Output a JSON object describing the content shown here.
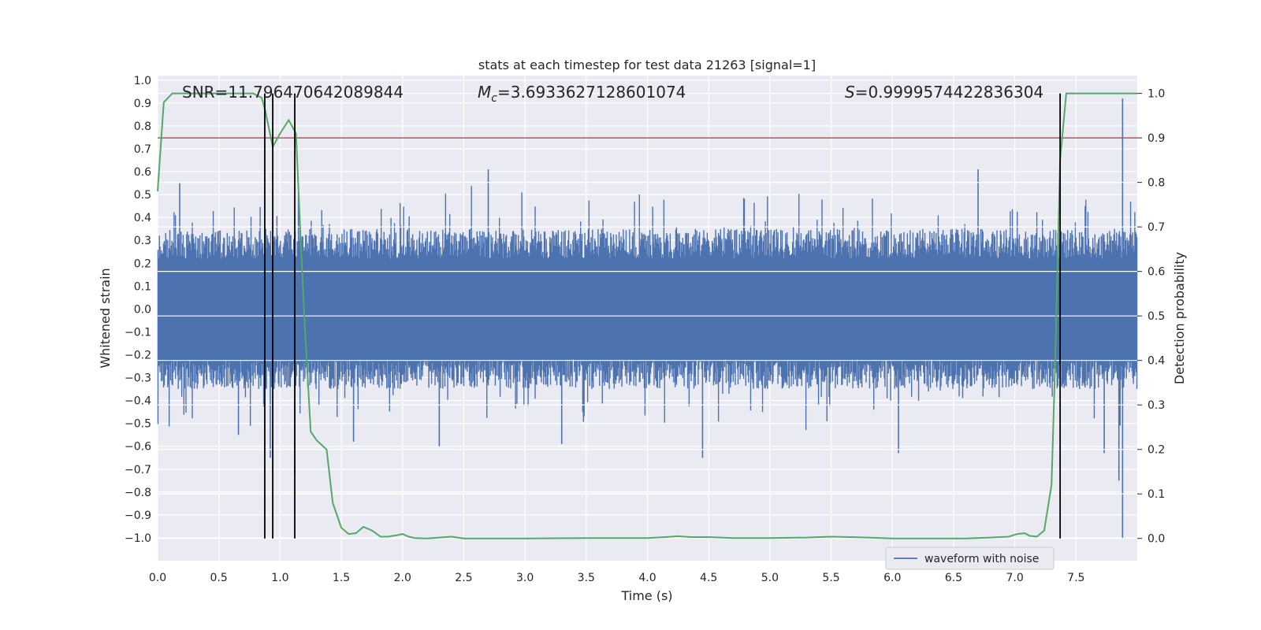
{
  "chart_data": {
    "type": "line",
    "title": "stats at each timestep for test data 21263 [signal=1]",
    "xlabel": "Time (s)",
    "ylabel_left": "Whitened strain",
    "ylabel_right": "Detection probability",
    "xlim": [
      0,
      8
    ],
    "ylim_left": [
      -1.1,
      1.02
    ],
    "ylim_right": [
      -0.05,
      1.04
    ],
    "x_ticks": [
      0.0,
      0.5,
      1.0,
      1.5,
      2.0,
      2.5,
      3.0,
      3.5,
      4.0,
      4.5,
      5.0,
      5.5,
      6.0,
      6.5,
      7.0,
      7.5
    ],
    "x_tick_labels": [
      "0.0",
      "0.5",
      "1.0",
      "1.5",
      "2.0",
      "2.5",
      "3.0",
      "3.5",
      "4.0",
      "4.5",
      "5.0",
      "5.5",
      "6.0",
      "6.5",
      "7.0",
      "7.5"
    ],
    "y_left_ticks": [
      1.0,
      0.9,
      0.8,
      0.7,
      0.6,
      0.5,
      0.4,
      0.3,
      0.2,
      0.1,
      0.0,
      -0.1,
      -0.2,
      -0.3,
      -0.4,
      -0.5,
      -0.6,
      -0.7,
      -0.8,
      -0.9,
      -1.0
    ],
    "y_left_tick_labels": [
      "1.0",
      "0.9",
      "0.8",
      "0.7",
      "0.6",
      "0.5",
      "0.4",
      "0.3",
      "0.2",
      "0.1",
      "0.0",
      "−0.1",
      "−0.2",
      "−0.3",
      "−0.4",
      "−0.5",
      "−0.6",
      "−0.7",
      "−0.8",
      "−0.9",
      "−1.0"
    ],
    "y_right_ticks": [
      1.0,
      0.9,
      0.8,
      0.7,
      0.6,
      0.5,
      0.4,
      0.3,
      0.2,
      0.1,
      0.0
    ],
    "y_right_tick_labels": [
      "1.0",
      "0.9",
      "0.8",
      "0.7",
      "0.6",
      "0.5",
      "0.4",
      "0.3",
      "0.2",
      "0.1",
      "0.0"
    ],
    "grid": true,
    "legend": {
      "position": "lower-right",
      "entries": [
        {
          "label": "waveform with noise",
          "color": "#4c72b0"
        }
      ]
    },
    "annotations": {
      "snr": "SNR=11.796470642089844",
      "mc_symbol": "M",
      "mc_subscript": "c",
      "mc_value": "=3.6933627128601074",
      "s_symbol": "S",
      "s_value": "=0.9999574422836304"
    },
    "threshold": {
      "value": 0.9,
      "axis": "right",
      "color": "#c44e52"
    },
    "vertical_markers": [
      0.875,
      0.94,
      1.12,
      7.37
    ],
    "waveform": {
      "name": "waveform with noise",
      "color": "#4c72b0",
      "core_amplitude": 0.22,
      "typical_peak": 0.35,
      "spikes": [
        {
          "t": 0.18,
          "y": 0.55
        },
        {
          "t": 0.66,
          "y": -0.55
        },
        {
          "t": 0.92,
          "y": -0.65
        },
        {
          "t": 1.12,
          "y": -0.72
        },
        {
          "t": 1.15,
          "y": 0.52
        },
        {
          "t": 1.6,
          "y": -0.58
        },
        {
          "t": 2.3,
          "y": -0.6
        },
        {
          "t": 2.7,
          "y": 0.61
        },
        {
          "t": 3.3,
          "y": -0.59
        },
        {
          "t": 4.45,
          "y": -0.65
        },
        {
          "t": 6.05,
          "y": -0.63
        },
        {
          "t": 6.7,
          "y": 0.61
        },
        {
          "t": 7.73,
          "y": -0.63
        },
        {
          "t": 7.85,
          "y": -0.75
        },
        {
          "t": 7.88,
          "y": 0.92
        },
        {
          "t": 7.88,
          "y": -1.0
        }
      ]
    },
    "detection_probability": {
      "color": "#55a868",
      "t": [
        0.0,
        0.05,
        0.12,
        0.2,
        0.4,
        0.6,
        0.78,
        0.85,
        0.88,
        0.94,
        1.0,
        1.07,
        1.13,
        1.17,
        1.2,
        1.25,
        1.3,
        1.38,
        1.43,
        1.5,
        1.56,
        1.62,
        1.68,
        1.75,
        1.82,
        1.88,
        1.95,
        2.0,
        2.05,
        2.1,
        2.2,
        2.3,
        2.4,
        2.5,
        2.7,
        3.0,
        3.5,
        4.0,
        4.15,
        4.25,
        4.35,
        4.5,
        4.7,
        5.0,
        5.3,
        5.5,
        5.65,
        5.8,
        6.0,
        6.3,
        6.6,
        6.8,
        6.95,
        7.02,
        7.08,
        7.12,
        7.18,
        7.24,
        7.3,
        7.33,
        7.37,
        7.42,
        7.45,
        7.6,
        8.0
      ],
      "p": [
        0.78,
        0.98,
        1.0,
        1.0,
        1.0,
        1.0,
        1.0,
        0.99,
        0.96,
        0.88,
        0.91,
        0.94,
        0.91,
        0.66,
        0.49,
        0.24,
        0.22,
        0.2,
        0.08,
        0.024,
        0.01,
        0.012,
        0.026,
        0.018,
        0.004,
        0.004,
        0.007,
        0.01,
        0.004,
        0.001,
        0.0,
        0.002,
        0.004,
        0.0,
        0.0,
        0.0,
        0.001,
        0.001,
        0.003,
        0.005,
        0.003,
        0.003,
        0.001,
        0.001,
        0.002,
        0.004,
        0.003,
        0.002,
        0.0,
        0.0,
        0.0,
        0.002,
        0.004,
        0.01,
        0.012,
        0.006,
        0.004,
        0.018,
        0.12,
        0.4,
        0.85,
        1.0,
        1.0,
        1.0,
        1.0
      ]
    }
  }
}
